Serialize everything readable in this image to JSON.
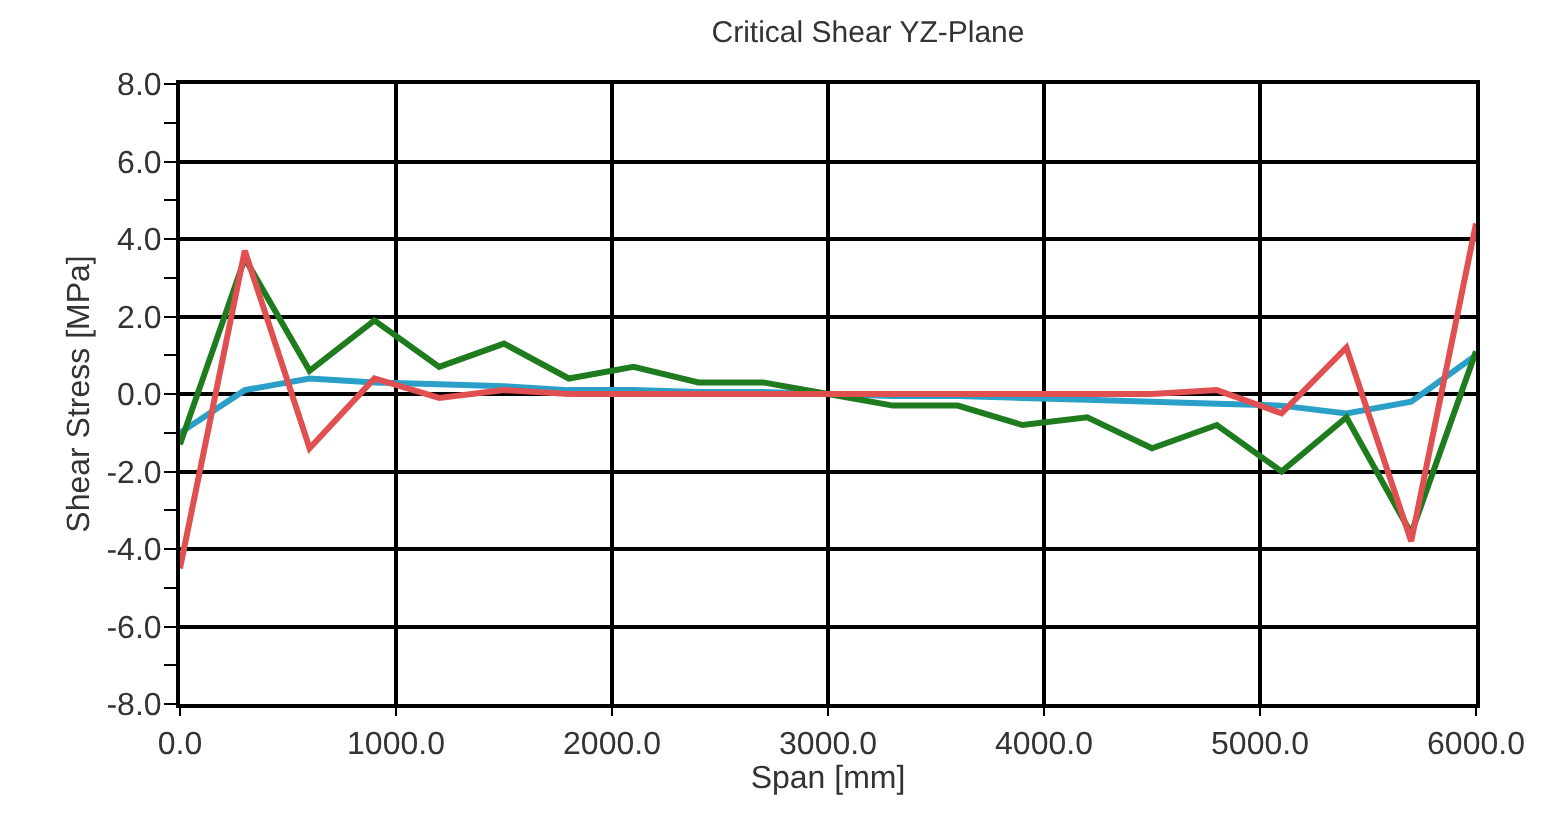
{
  "chart_data": {
    "type": "line",
    "title": "Critical Shear YZ-Plane",
    "xlabel": "Span [mm]",
    "ylabel": "Shear Stress [MPa]",
    "x": [
      0,
      300,
      600,
      900,
      1200,
      1500,
      1800,
      2100,
      2400,
      2700,
      3000,
      3300,
      3600,
      3900,
      4200,
      4500,
      4800,
      5100,
      5400,
      5700,
      6000
    ],
    "series": [
      {
        "color": "#2aa0c8",
        "values": [
          -1.0,
          0.1,
          0.4,
          0.3,
          0.25,
          0.2,
          0.1,
          0.1,
          0.05,
          0.05,
          0.0,
          -0.05,
          -0.05,
          -0.1,
          -0.15,
          -0.2,
          -0.25,
          -0.3,
          -0.5,
          -0.2,
          1.0
        ]
      },
      {
        "color": "#1e7b1e",
        "values": [
          -1.3,
          3.5,
          0.6,
          1.9,
          0.7,
          1.3,
          0.4,
          0.7,
          0.3,
          0.3,
          0.0,
          -0.3,
          -0.3,
          -0.8,
          -0.6,
          -1.4,
          -0.8,
          -2.0,
          -0.6,
          -3.6,
          1.1
        ]
      },
      {
        "color": "#e05050",
        "values": [
          -4.5,
          3.7,
          -1.4,
          0.4,
          -0.1,
          0.1,
          0.0,
          0.0,
          0.0,
          0.0,
          0.0,
          0.0,
          0.0,
          0.0,
          0.0,
          0.0,
          0.1,
          -0.5,
          1.2,
          -3.8,
          4.4
        ]
      }
    ],
    "xlim": [
      0,
      6000
    ],
    "xticks": [
      {
        "value": 0,
        "label": "0.0"
      },
      {
        "value": 1000,
        "label": "1000.0"
      },
      {
        "value": 2000,
        "label": "2000.0"
      },
      {
        "value": 3000,
        "label": "3000.0"
      },
      {
        "value": 4000,
        "label": "4000.0"
      },
      {
        "value": 5000,
        "label": "5000.0"
      },
      {
        "value": 6000,
        "label": "6000.0"
      }
    ],
    "ylim": [
      -8,
      8
    ],
    "yticks": [
      {
        "value": -8,
        "label": "-8.0"
      },
      {
        "value": -6,
        "label": "-6.0"
      },
      {
        "value": -4,
        "label": "-4.0"
      },
      {
        "value": -2,
        "label": "-2.0"
      },
      {
        "value": 0,
        "label": "0.0"
      },
      {
        "value": 2,
        "label": "2.0"
      },
      {
        "value": 4,
        "label": "4.0"
      },
      {
        "value": 6,
        "label": "6.0"
      },
      {
        "value": 8,
        "label": "8.0"
      }
    ],
    "grid": true,
    "marker": "none",
    "line_style": "solid"
  }
}
